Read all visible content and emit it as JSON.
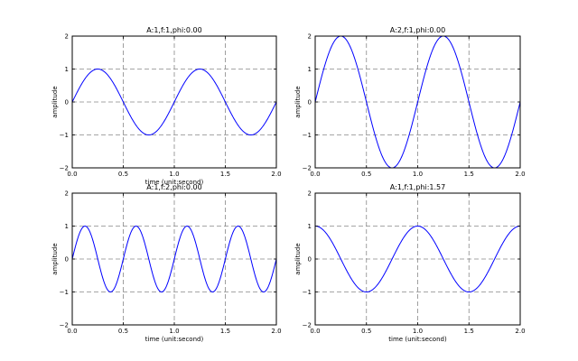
{
  "chart_data": [
    {
      "type": "line",
      "title": "A:1,f:1,phi:0.00",
      "xlabel": "time (unit:second)",
      "ylabel": "amplitude",
      "xlim": [
        0,
        2
      ],
      "ylim": [
        -2,
        2
      ],
      "xticks": [
        "0.0",
        "0.5",
        "1.0",
        "1.5",
        "2.0"
      ],
      "yticks": [
        "2",
        "1",
        "0",
        "−1",
        "−2"
      ],
      "grid": true,
      "series": [
        {
          "function": "A*sin(2*pi*f*t + phi)",
          "A": 1,
          "f": 1,
          "phi": 0.0,
          "color": "#0000ff"
        }
      ]
    },
    {
      "type": "line",
      "title": "A:2,f:1,phi:0.00",
      "xlabel": "",
      "ylabel": "amplitude",
      "xlim": [
        0,
        2
      ],
      "ylim": [
        -2,
        2
      ],
      "xticks": [
        "0.0",
        "0.5",
        "1.0",
        "1.5",
        "2.0"
      ],
      "yticks": [
        "2",
        "1",
        "0",
        "−1",
        "−2"
      ],
      "grid": true,
      "series": [
        {
          "function": "A*sin(2*pi*f*t + phi)",
          "A": 2,
          "f": 1,
          "phi": 0.0,
          "color": "#0000ff"
        }
      ]
    },
    {
      "type": "line",
      "title": "A:1,f:2,phi:0.00",
      "xlabel": "time (unit:second)",
      "ylabel": "amplitude",
      "xlim": [
        0,
        2
      ],
      "ylim": [
        -2,
        2
      ],
      "xticks": [
        "0.0",
        "0.5",
        "1.0",
        "1.5",
        "2.0"
      ],
      "yticks": [
        "2",
        "1",
        "0",
        "−1",
        "−2"
      ],
      "grid": true,
      "series": [
        {
          "function": "A*sin(2*pi*f*t + phi)",
          "A": 1,
          "f": 2,
          "phi": 0.0,
          "color": "#0000ff"
        }
      ]
    },
    {
      "type": "line",
      "title": "A:1,f:1,phi:1.57",
      "xlabel": "time (unit:second)",
      "ylabel": "amplitude",
      "xlim": [
        0,
        2
      ],
      "ylim": [
        -2,
        2
      ],
      "xticks": [
        "0.0",
        "0.5",
        "1.0",
        "1.5",
        "2.0"
      ],
      "yticks": [
        "2",
        "1",
        "0",
        "−1",
        "−2"
      ],
      "grid": true,
      "series": [
        {
          "function": "A*sin(2*pi*f*t + phi)",
          "A": 1,
          "f": 1,
          "phi": 1.57,
          "color": "#0000ff"
        }
      ]
    }
  ]
}
